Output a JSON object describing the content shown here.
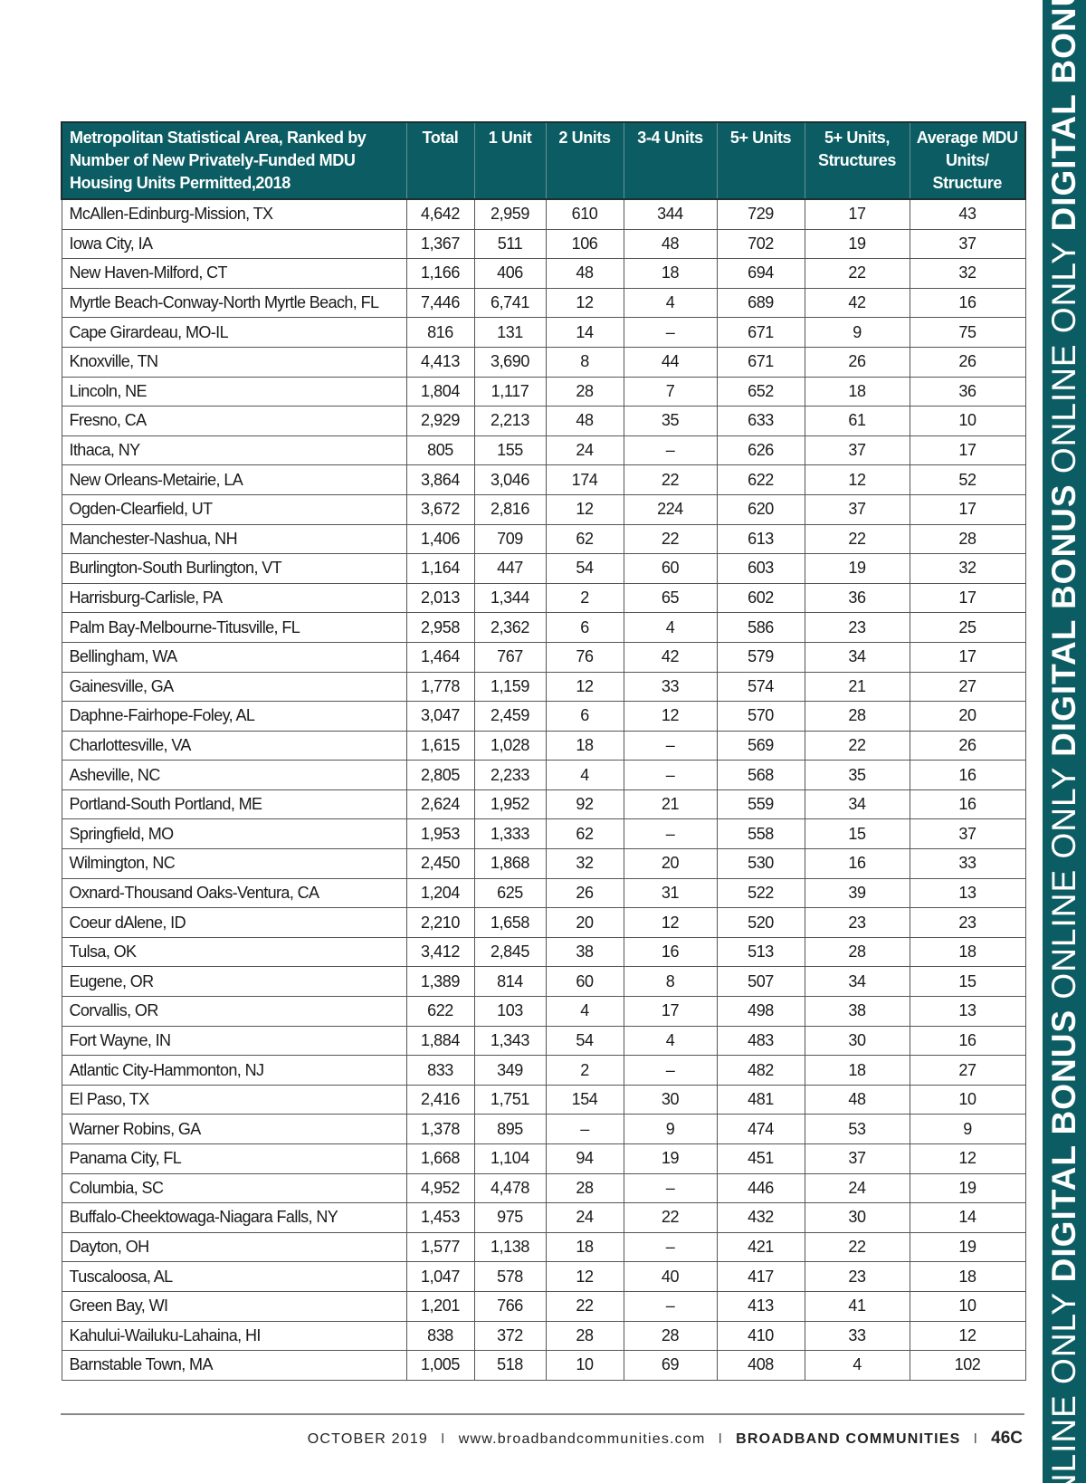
{
  "table": {
    "headers": [
      "Metropolitan Statistical Area, Ranked by Number of New Privately-Funded MDU Housing Units Permitted,2018",
      "Total",
      "1 Unit",
      "2 Units",
      "3-4 Units",
      "5+ Units",
      "5+ Units, Structures",
      "Average MDU Units/ Structure"
    ],
    "rows": [
      [
        "McAllen-Edinburg-Mission, TX",
        "4,642",
        "2,959",
        "610",
        "344",
        "729",
        "17",
        "43"
      ],
      [
        "Iowa City, IA",
        "1,367",
        "511",
        "106",
        "48",
        "702",
        "19",
        "37"
      ],
      [
        "New Haven-Milford, CT",
        "1,166",
        "406",
        "48",
        "18",
        "694",
        "22",
        "32"
      ],
      [
        "Myrtle Beach-Conway-North Myrtle Beach, FL",
        "7,446",
        "6,741",
        "12",
        "4",
        "689",
        "42",
        "16"
      ],
      [
        "Cape Girardeau, MO-IL",
        "816",
        "131",
        "14",
        "–",
        "671",
        "9",
        "75"
      ],
      [
        "Knoxville, TN",
        "4,413",
        "3,690",
        "8",
        "44",
        "671",
        "26",
        "26"
      ],
      [
        "Lincoln, NE",
        "1,804",
        "1,117",
        "28",
        "7",
        "652",
        "18",
        "36"
      ],
      [
        "Fresno, CA",
        "2,929",
        "2,213",
        "48",
        "35",
        "633",
        "61",
        "10"
      ],
      [
        "Ithaca, NY",
        "805",
        "155",
        "24",
        "–",
        "626",
        "37",
        "17"
      ],
      [
        "New Orleans-Metairie, LA",
        "3,864",
        "3,046",
        "174",
        "22",
        "622",
        "12",
        "52"
      ],
      [
        "Ogden-Clearfield, UT",
        "3,672",
        "2,816",
        "12",
        "224",
        "620",
        "37",
        "17"
      ],
      [
        "Manchester-Nashua, NH",
        "1,406",
        "709",
        "62",
        "22",
        "613",
        "22",
        "28"
      ],
      [
        "Burlington-South Burlington, VT",
        "1,164",
        "447",
        "54",
        "60",
        "603",
        "19",
        "32"
      ],
      [
        "Harrisburg-Carlisle, PA",
        "2,013",
        "1,344",
        "2",
        "65",
        "602",
        "36",
        "17"
      ],
      [
        "Palm Bay-Melbourne-Titusville, FL",
        "2,958",
        "2,362",
        "6",
        "4",
        "586",
        "23",
        "25"
      ],
      [
        "Bellingham, WA",
        "1,464",
        "767",
        "76",
        "42",
        "579",
        "34",
        "17"
      ],
      [
        "Gainesville, GA",
        "1,778",
        "1,159",
        "12",
        "33",
        "574",
        "21",
        "27"
      ],
      [
        "Daphne-Fairhope-Foley, AL",
        "3,047",
        "2,459",
        "6",
        "12",
        "570",
        "28",
        "20"
      ],
      [
        "Charlottesville, VA",
        "1,615",
        "1,028",
        "18",
        "–",
        "569",
        "22",
        "26"
      ],
      [
        "Asheville, NC",
        "2,805",
        "2,233",
        "4",
        "–",
        "568",
        "35",
        "16"
      ],
      [
        "Portland-South Portland, ME",
        "2,624",
        "1,952",
        "92",
        "21",
        "559",
        "34",
        "16"
      ],
      [
        "Springfield, MO",
        "1,953",
        "1,333",
        "62",
        "–",
        "558",
        "15",
        "37"
      ],
      [
        "Wilmington, NC",
        "2,450",
        "1,868",
        "32",
        "20",
        "530",
        "16",
        "33"
      ],
      [
        "Oxnard-Thousand Oaks-Ventura, CA",
        "1,204",
        "625",
        "26",
        "31",
        "522",
        "39",
        "13"
      ],
      [
        "Coeur dAlene, ID",
        "2,210",
        "1,658",
        "20",
        "12",
        "520",
        "23",
        "23"
      ],
      [
        "Tulsa, OK",
        "3,412",
        "2,845",
        "38",
        "16",
        "513",
        "28",
        "18"
      ],
      [
        "Eugene, OR",
        "1,389",
        "814",
        "60",
        "8",
        "507",
        "34",
        "15"
      ],
      [
        "Corvallis, OR",
        "622",
        "103",
        "4",
        "17",
        "498",
        "38",
        "13"
      ],
      [
        "Fort Wayne, IN",
        "1,884",
        "1,343",
        "54",
        "4",
        "483",
        "30",
        "16"
      ],
      [
        "Atlantic City-Hammonton, NJ",
        "833",
        "349",
        "2",
        "–",
        "482",
        "18",
        "27"
      ],
      [
        "El Paso, TX",
        "2,416",
        "1,751",
        "154",
        "30",
        "481",
        "48",
        "10"
      ],
      [
        "Warner Robins, GA",
        "1,378",
        "895",
        "–",
        "9",
        "474",
        "53",
        "9"
      ],
      [
        "Panama City, FL",
        "1,668",
        "1,104",
        "94",
        "19",
        "451",
        "37",
        "12"
      ],
      [
        "Columbia, SC",
        "4,952",
        "4,478",
        "28",
        "–",
        "446",
        "24",
        "19"
      ],
      [
        "Buffalo-Cheektowaga-Niagara Falls, NY",
        "1,453",
        "975",
        "24",
        "22",
        "432",
        "30",
        "14"
      ],
      [
        "Dayton, OH",
        "1,577",
        "1,138",
        "18",
        "–",
        "421",
        "22",
        "19"
      ],
      [
        "Tuscaloosa, AL",
        "1,047",
        "578",
        "12",
        "40",
        "417",
        "23",
        "18"
      ],
      [
        "Green Bay, WI",
        "1,201",
        "766",
        "22",
        "–",
        "413",
        "41",
        "10"
      ],
      [
        "Kahului-Wailuku-Lahaina, HI",
        "838",
        "372",
        "28",
        "28",
        "410",
        "33",
        "12"
      ],
      [
        "Barnstable Town, MA",
        "1,005",
        "518",
        "10",
        "69",
        "408",
        "4",
        "102"
      ]
    ]
  },
  "footer": {
    "date": "OCTOBER 2019",
    "url": "www.broadbandcommunities.com",
    "publication": "BROADBAND COMMUNITIES",
    "page": "46C",
    "separator": "I"
  },
  "banner": {
    "segments": [
      "ONLINE ONLY",
      "DIGITAL BONUS",
      "ONLINE ONLY",
      "DIGITAL BONUS",
      "ONLINE ONLY",
      "DIGITAL BONUS"
    ]
  },
  "colors": {
    "accent": "#0b5d63",
    "text": "#1a1a1a"
  }
}
